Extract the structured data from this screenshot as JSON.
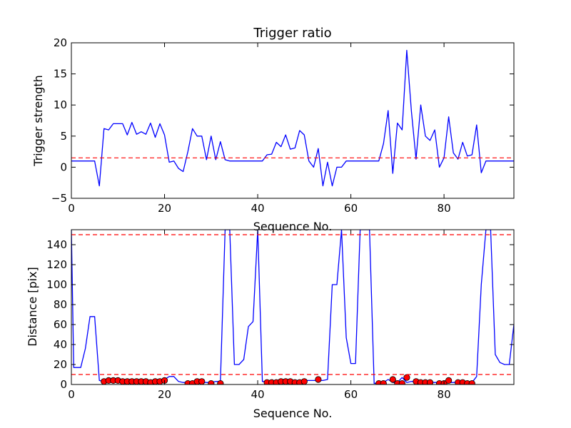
{
  "chart_data": [
    {
      "type": "line",
      "title": "Trigger ratio",
      "xlabel": "Sequence No.",
      "ylabel": "Trigger strength",
      "xlim": [
        0,
        95
      ],
      "ylim": [
        -5,
        20
      ],
      "xticks": [
        "0",
        "20",
        "40",
        "60",
        "80"
      ],
      "yticks": [
        "−5",
        "0",
        "5",
        "10",
        "15",
        "20"
      ],
      "xtick_values": [
        0,
        20,
        40,
        60,
        80
      ],
      "ytick_values": [
        -5,
        0,
        5,
        10,
        15,
        20
      ],
      "grid": false,
      "series": [
        {
          "style": "solid line",
          "color": "#0000ff",
          "x": [
            0,
            1,
            2,
            3,
            4,
            5,
            6,
            7,
            8,
            9,
            10,
            11,
            12,
            13,
            14,
            15,
            16,
            17,
            18,
            19,
            20,
            21,
            22,
            23,
            24,
            25,
            26,
            27,
            28,
            29,
            30,
            31,
            32,
            33,
            34,
            35,
            36,
            37,
            38,
            39,
            40,
            41,
            42,
            43,
            44,
            45,
            46,
            47,
            48,
            49,
            50,
            51,
            52,
            53,
            54,
            55,
            56,
            57,
            58,
            59,
            60,
            61,
            62,
            63,
            64,
            65,
            66,
            67,
            68,
            69,
            70,
            71,
            72,
            73,
            74,
            75,
            76,
            77,
            78,
            79,
            80,
            81,
            82,
            83,
            84,
            85,
            86,
            87,
            88,
            89,
            90,
            91,
            92,
            93,
            94,
            95
          ],
          "y": [
            1,
            1,
            1,
            1,
            1,
            1,
            -3,
            6.2,
            6,
            7,
            7,
            7,
            5.2,
            7.2,
            5.3,
            5.7,
            5.3,
            7.1,
            4.8,
            7,
            5.2,
            0.8,
            1,
            -0.2,
            -0.7,
            2.5,
            6.2,
            5,
            5,
            1.2,
            5,
            1.2,
            4.1,
            1.2,
            1,
            1,
            1,
            1,
            1,
            1,
            1,
            1,
            2,
            2.1,
            4,
            3.3,
            5.2,
            2.9,
            3.1,
            5.9,
            5.2,
            1,
            0,
            3,
            -3,
            0.8,
            -3,
            0,
            0,
            1,
            1,
            1,
            1,
            1,
            1,
            1,
            1,
            3.8,
            9.1,
            -1,
            7.1,
            6,
            18.8,
            9,
            1.3,
            10,
            5,
            4.3,
            6,
            0,
            1.5,
            8.1,
            2.3,
            1.3,
            4,
            1.8,
            2,
            6.8,
            -0.9,
            1,
            1,
            1,
            1,
            1,
            1,
            1
          ]
        },
        {
          "style": "dashed threshold line",
          "color": "#ff0000",
          "y_constant": 1.5
        }
      ]
    },
    {
      "type": "line",
      "title": "",
      "xlabel": "Sequence No.",
      "ylabel": "Distance [pix]",
      "xlim": [
        0,
        95
      ],
      "ylim": [
        0,
        155
      ],
      "xticks": [
        "0",
        "20",
        "40",
        "60",
        "80"
      ],
      "yticks": [
        "0",
        "20",
        "40",
        "60",
        "80",
        "100",
        "120",
        "140"
      ],
      "xtick_values": [
        0,
        20,
        40,
        60,
        80
      ],
      "ytick_values": [
        0,
        20,
        40,
        60,
        80,
        100,
        120,
        140
      ],
      "grid": false,
      "series": [
        {
          "style": "solid line",
          "color": "#0000ff",
          "x": [
            0,
            0.5,
            1,
            2,
            3,
            4,
            5,
            6,
            7,
            8,
            9,
            10,
            11,
            12,
            13,
            14,
            15,
            16,
            17,
            18,
            19,
            20,
            21,
            22,
            23,
            24,
            25,
            26,
            27,
            28,
            29,
            30,
            31,
            32,
            33,
            34,
            35,
            36,
            37,
            38,
            39,
            40,
            41,
            42,
            43,
            44,
            45,
            46,
            47,
            48,
            49,
            50,
            51,
            52,
            53,
            54,
            55,
            56,
            57,
            58,
            59,
            60,
            61,
            62,
            63,
            64,
            65,
            66,
            67,
            68,
            69,
            70,
            71,
            72,
            73,
            74,
            75,
            76,
            77,
            78,
            79,
            80,
            81,
            82,
            83,
            84,
            85,
            86,
            87,
            88,
            89,
            90,
            91,
            92,
            93,
            94,
            95
          ],
          "y": [
            155,
            17,
            17,
            17,
            36,
            68,
            68,
            4,
            3,
            4,
            5,
            5,
            4,
            4,
            4,
            4,
            4,
            3,
            3,
            3,
            4,
            5,
            8,
            8,
            3,
            2,
            2,
            3,
            3,
            2,
            2,
            2,
            3,
            3,
            155,
            155,
            20,
            20,
            25,
            58,
            63,
            155,
            3,
            3,
            3,
            4,
            4,
            4,
            3,
            4,
            4,
            4,
            4,
            4,
            4,
            4,
            5,
            100,
            100,
            155,
            47,
            21,
            21,
            155,
            155,
            155,
            1,
            2,
            2,
            5,
            2,
            2,
            7,
            2,
            3,
            3,
            2,
            2,
            2,
            2,
            2,
            3,
            2,
            2,
            2,
            2,
            2,
            2,
            8,
            100,
            155,
            155,
            30,
            22,
            20,
            20,
            60
          ]
        },
        {
          "style": "red circle markers",
          "color": "#ff0000",
          "x": [
            7,
            8,
            9,
            10,
            11,
            12,
            13,
            14,
            15,
            16,
            17,
            18,
            19,
            20,
            25,
            26,
            27,
            28,
            30,
            32,
            42,
            43,
            44,
            45,
            46,
            47,
            48,
            49,
            50,
            53,
            66,
            67,
            69,
            70,
            71,
            72,
            74,
            75,
            76,
            77,
            79,
            80,
            81,
            83,
            84,
            85,
            86
          ],
          "y": [
            3,
            4,
            4,
            4,
            3,
            3,
            3,
            3,
            3,
            3,
            2,
            3,
            3,
            4,
            1,
            1,
            3,
            3,
            1,
            1,
            2,
            2,
            2,
            3,
            3,
            3,
            2,
            2,
            3,
            5,
            1,
            1,
            5,
            1,
            1,
            7,
            3,
            2,
            2,
            2,
            1,
            1,
            4,
            2,
            2,
            1,
            1
          ]
        },
        {
          "style": "dashed threshold line",
          "color": "#ff0000",
          "y_constant": 150
        },
        {
          "style": "dashed threshold line",
          "color": "#ff0000",
          "y_constant": 10
        }
      ]
    }
  ]
}
